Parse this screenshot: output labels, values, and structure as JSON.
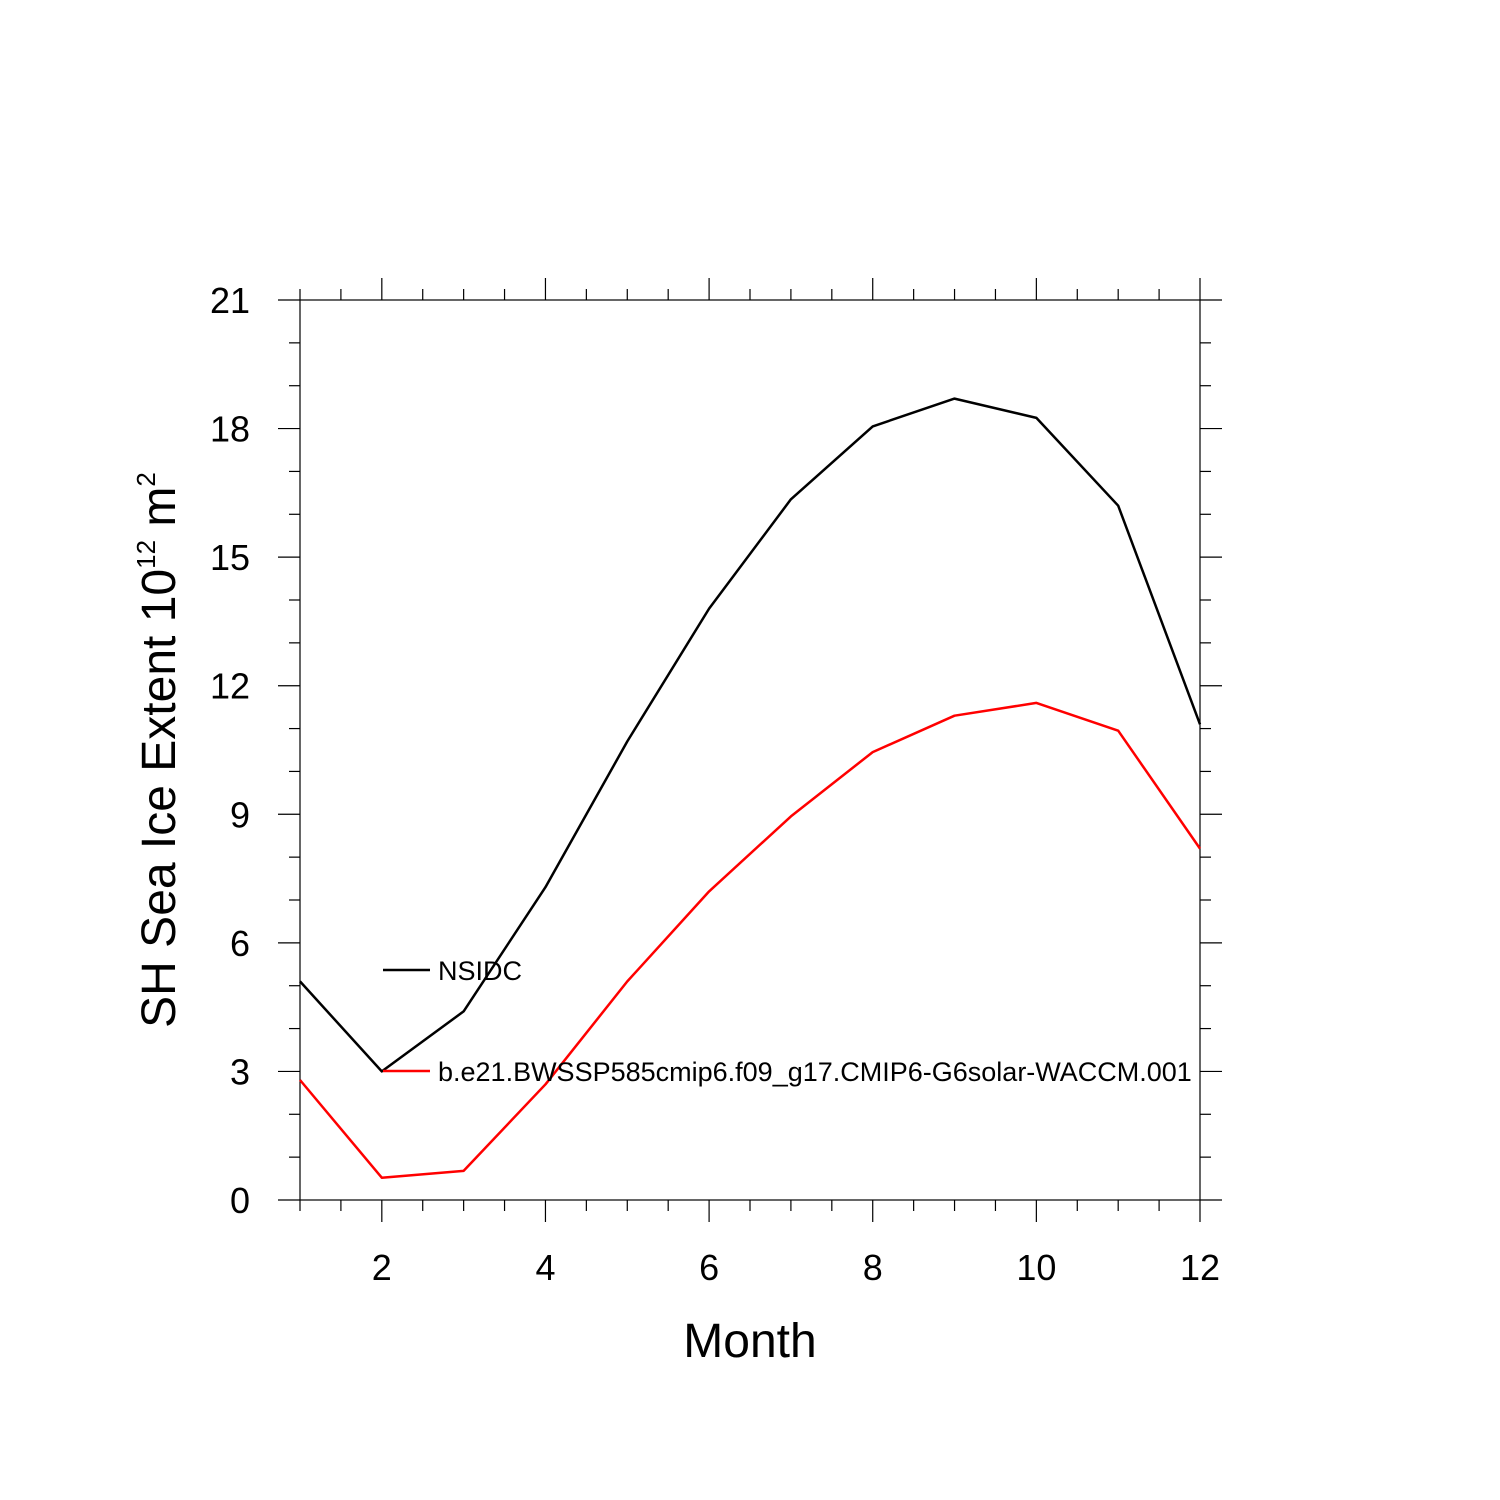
{
  "chart_data": {
    "type": "line",
    "title": "",
    "xlabel": "Month",
    "ylabel": {
      "main": "SH Sea Ice Extent 10",
      "exponent": "12",
      "unit": " m",
      "unit_exponent": "2"
    },
    "xlim": [
      1,
      12
    ],
    "ylim": [
      0,
      21
    ],
    "xticks": [
      2,
      4,
      6,
      8,
      10,
      12
    ],
    "yticks": [
      0,
      3,
      6,
      9,
      12,
      15,
      18,
      21
    ],
    "x": [
      1,
      2,
      3,
      4,
      5,
      6,
      7,
      8,
      9,
      10,
      11,
      12
    ],
    "series": [
      {
        "name": "NSIDC",
        "color": "#000000",
        "values": [
          5.1,
          3.0,
          4.4,
          7.3,
          10.7,
          13.8,
          16.35,
          18.05,
          18.7,
          18.25,
          16.2,
          11.1
        ]
      },
      {
        "name": "b.e21.BWSSP585cmip6.f09_g17.CMIP6-G6solar-WACCM.001",
        "color": "#ff0000",
        "values": [
          2.8,
          0.52,
          0.68,
          2.7,
          5.1,
          7.2,
          8.95,
          10.45,
          11.3,
          11.6,
          10.95,
          8.2
        ]
      }
    ],
    "grid": false,
    "legend": "inside-left"
  }
}
